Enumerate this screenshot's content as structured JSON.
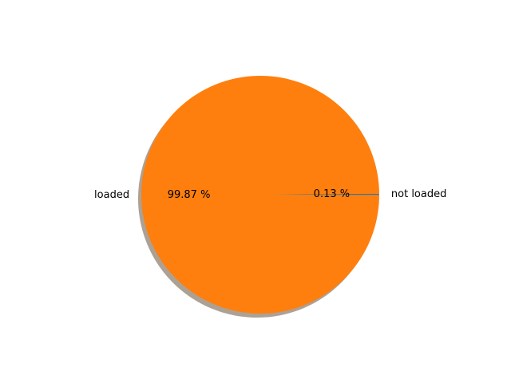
{
  "chart_data": {
    "type": "pie",
    "title": "",
    "labels": [
      "not loaded",
      "loaded"
    ],
    "values": [
      0.13,
      99.87
    ],
    "percent_labels": [
      "0.13 %",
      "99.87 %"
    ],
    "colors": [
      "#1f77b4",
      "#ff7f0e"
    ],
    "shadow": true,
    "start_angle_deg": 0,
    "direction": "counterclockwise",
    "legend": "none"
  }
}
